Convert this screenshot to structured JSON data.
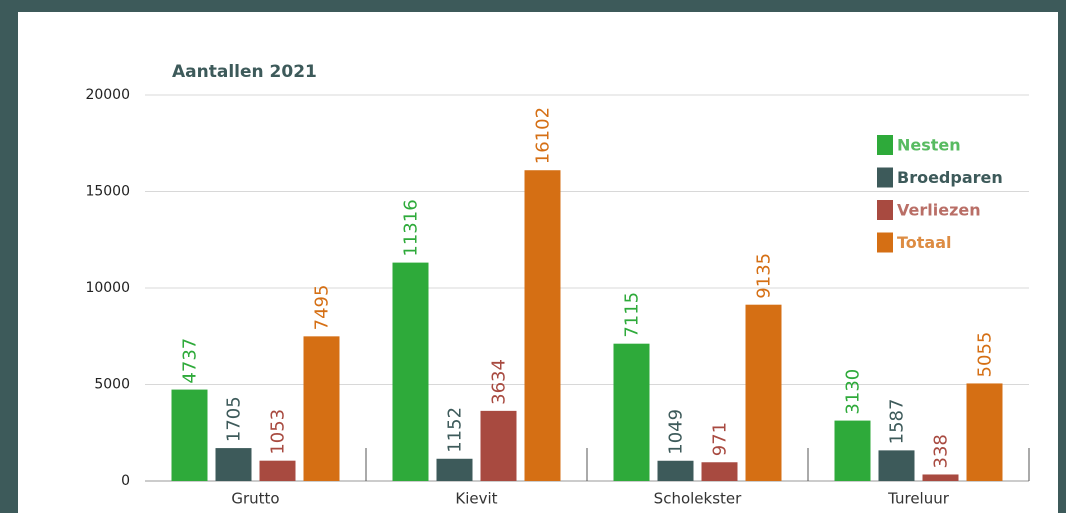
{
  "chart_data": {
    "type": "bar",
    "title": "Aantallen 2021",
    "categories": [
      "Grutto",
      "Kievit",
      "Scholekster",
      "Tureluur"
    ],
    "series": [
      {
        "name": "Nesten",
        "color": "#2eaa3a",
        "values": [
          4737,
          11316,
          7115,
          3130
        ]
      },
      {
        "name": "Broedparen",
        "color": "#3d5a5a",
        "values": [
          1705,
          1152,
          1049,
          1587
        ]
      },
      {
        "name": "Verliezen",
        "color": "#a84a40",
        "values": [
          1053,
          3634,
          971,
          338
        ]
      },
      {
        "name": "Totaal",
        "color": "#d56f14",
        "values": [
          7495,
          16102,
          9135,
          5055
        ]
      }
    ],
    "ylim": [
      0,
      20000
    ],
    "yticks": [
      0,
      5000,
      10000,
      15000,
      20000
    ],
    "grid": true,
    "legend": "upper right"
  }
}
